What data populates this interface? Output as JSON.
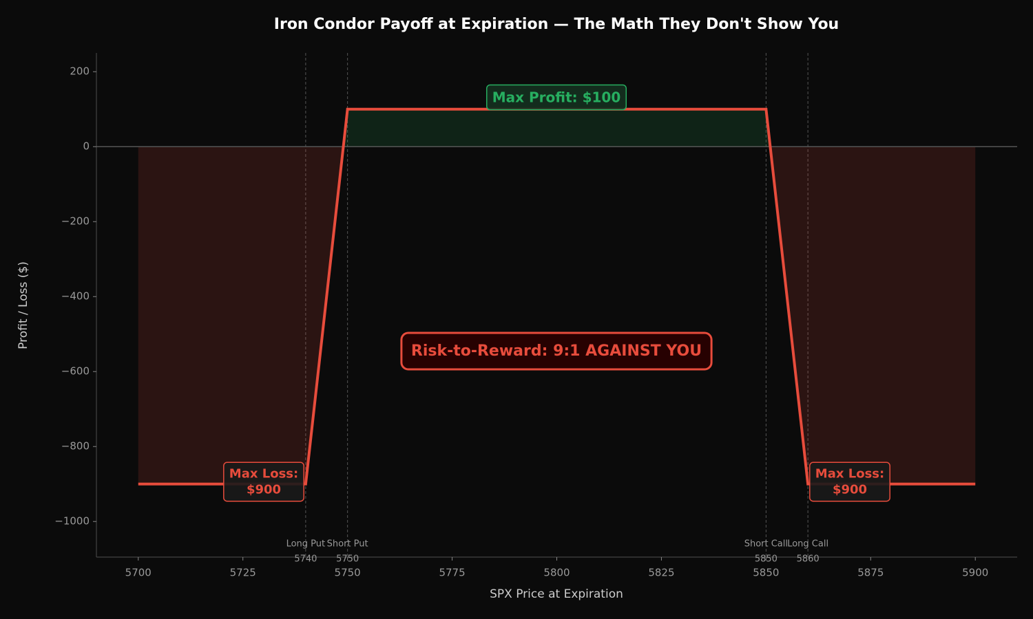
{
  "chart_data": {
    "type": "line",
    "title": "Iron Condor Payoff at Expiration — The Math They Don't Show You",
    "x_label": "SPX Price at Expiration",
    "y_label": "Profit / Loss ($)",
    "x": [
      5700,
      5740,
      5750,
      5850,
      5860,
      5900
    ],
    "series": [
      {
        "name": "Payoff",
        "color": "#e74c3c",
        "values": [
          -900,
          -900,
          100,
          100,
          -900,
          -900
        ]
      }
    ],
    "profit_color": "#27ae60",
    "loss_color": "#e74c3c",
    "xlim": [
      5690,
      5910
    ],
    "ylim": [
      -1095,
      250
    ],
    "xticks": [
      5700,
      5725,
      5750,
      5775,
      5800,
      5825,
      5850,
      5875,
      5900
    ],
    "yticks": [
      {
        "value": -1000,
        "label": "−1000"
      },
      {
        "value": -800,
        "label": "−800"
      },
      {
        "value": -600,
        "label": "−600"
      },
      {
        "value": -400,
        "label": "−400"
      },
      {
        "value": -200,
        "label": "−200"
      },
      0,
      200
    ],
    "strikes": [
      {
        "label": "Long Put",
        "value": 5740
      },
      {
        "label": "Short Put",
        "value": 5750
      },
      {
        "label": "Short Call",
        "value": 5850
      },
      {
        "label": "Long Call",
        "value": 5860
      }
    ],
    "annotations": [
      {
        "lines": [
          "Max Profit: $100"
        ]
      },
      {
        "lines": [
          "Max Loss:",
          "$900"
        ]
      },
      {
        "lines": [
          "Max Loss:",
          "$900"
        ]
      },
      {
        "lines": [
          "Risk-to-Reward: 9:1 AGAINST YOU"
        ]
      }
    ],
    "zero_line": true
  }
}
